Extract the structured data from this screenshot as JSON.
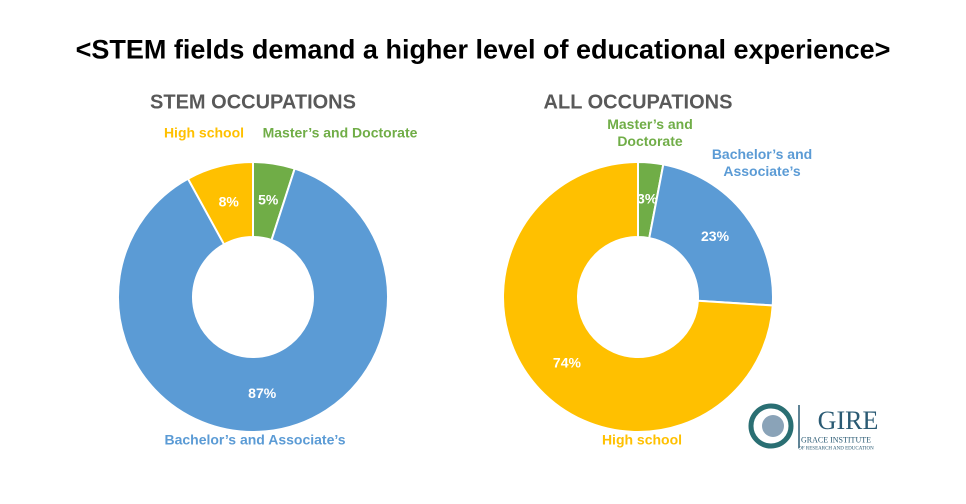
{
  "title": "<STEM fields demand a higher level of educational experience>",
  "chart_data": [
    {
      "type": "donut",
      "title": "STEM OCCUPATIONS",
      "categories": [
        "Master’s and Doctorate",
        "Bachelor’s and Associate’s",
        "High school"
      ],
      "values": [
        5,
        87,
        8
      ],
      "value_labels": [
        "5%",
        "87%",
        "8%"
      ],
      "colors": [
        "#70ad47",
        "#5b9bd5",
        "#ffc000"
      ]
    },
    {
      "type": "donut",
      "title": "ALL OCCUPATIONS",
      "categories": [
        "Master’s and Doctorate",
        "Bachelor’s and Associate’s",
        "High school"
      ],
      "values": [
        3,
        23,
        74
      ],
      "value_labels": [
        "3%",
        "23%",
        "74%"
      ],
      "colors": [
        "#70ad47",
        "#5b9bd5",
        "#ffc000"
      ]
    }
  ],
  "logo": {
    "name": "GIRE",
    "line1": "GRACE INSTITUTE",
    "line2": "OF RESEARCH AND EDUCATION"
  }
}
